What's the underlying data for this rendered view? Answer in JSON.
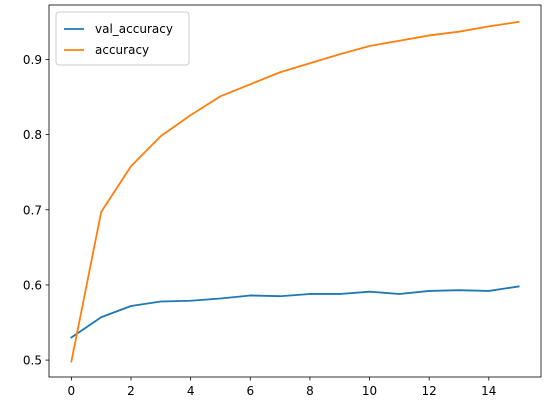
{
  "chart_data": {
    "type": "line",
    "x": [
      0,
      1,
      2,
      3,
      4,
      5,
      6,
      7,
      8,
      9,
      10,
      11,
      12,
      13,
      14,
      15
    ],
    "series": [
      {
        "name": "val_accuracy",
        "color": "#1f77b4",
        "values": [
          0.53,
          0.557,
          0.572,
          0.578,
          0.579,
          0.582,
          0.586,
          0.585,
          0.588,
          0.588,
          0.591,
          0.588,
          0.592,
          0.593,
          0.592,
          0.598
        ]
      },
      {
        "name": "accuracy",
        "color": "#ff7f0e",
        "values": [
          0.498,
          0.697,
          0.758,
          0.798,
          0.826,
          0.851,
          0.867,
          0.883,
          0.895,
          0.907,
          0.918,
          0.925,
          0.932,
          0.937,
          0.944,
          0.95
        ]
      }
    ],
    "xlim": [
      -0.75,
      15.75
    ],
    "ylim": [
      0.4775,
      0.9725
    ],
    "x_ticks": [
      0,
      2,
      4,
      6,
      8,
      10,
      12,
      14
    ],
    "y_ticks": [
      0.5,
      0.6,
      0.7,
      0.8,
      0.9
    ],
    "x_tick_labels": [
      "0",
      "2",
      "4",
      "6",
      "8",
      "10",
      "12",
      "14"
    ],
    "y_tick_labels": [
      "0.5",
      "0.6",
      "0.7",
      "0.8",
      "0.9"
    ],
    "grid": false,
    "legend_position": "upper-left",
    "title": "",
    "xlabel": "",
    "ylabel": ""
  }
}
